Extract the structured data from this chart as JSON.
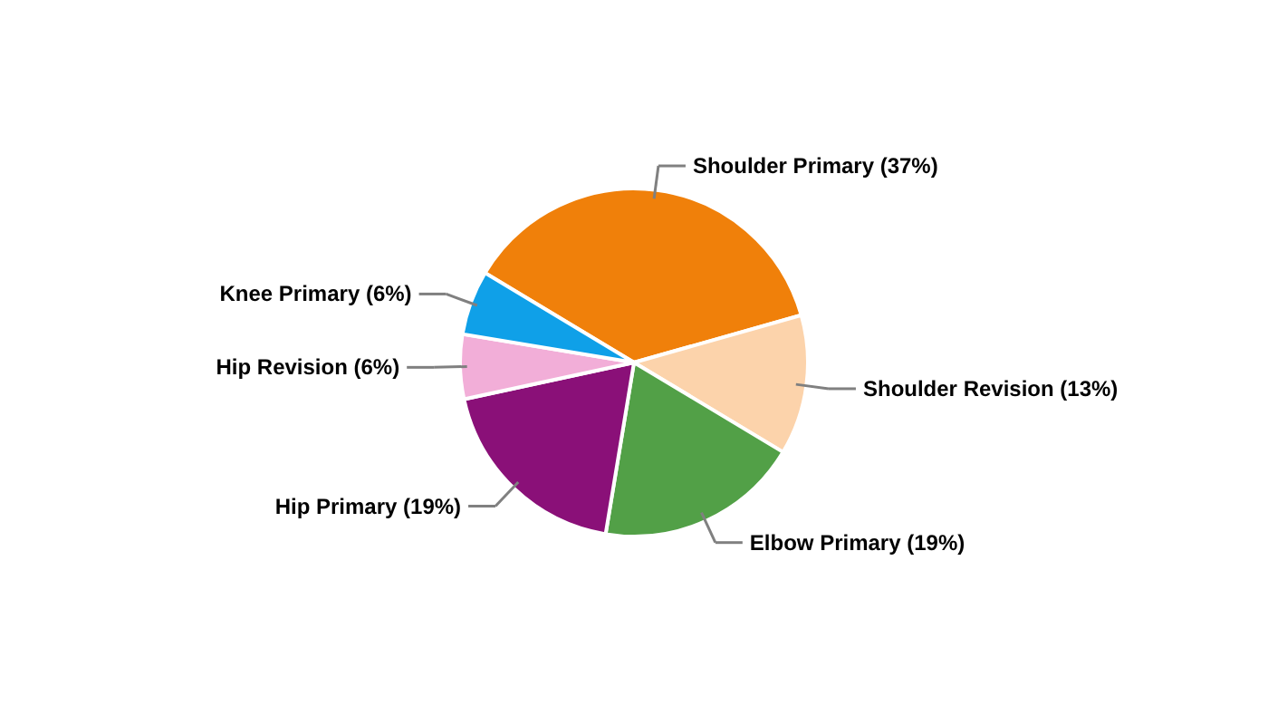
{
  "chart_data": {
    "type": "pie",
    "categories": [
      "Shoulder Primary (37%)",
      "Shoulder Revision (13%)",
      "Elbow Primary (19%)",
      "Hip Primary (19%)",
      "Hip Revision (6%)",
      "Knee Primary (6%)"
    ],
    "values": [
      37,
      13,
      19,
      19,
      6,
      6
    ],
    "colors": [
      "#f0800a",
      "#fcd3ab",
      "#52a047",
      "#8a1078",
      "#f2aed8",
      "#0fa0e8"
    ]
  }
}
